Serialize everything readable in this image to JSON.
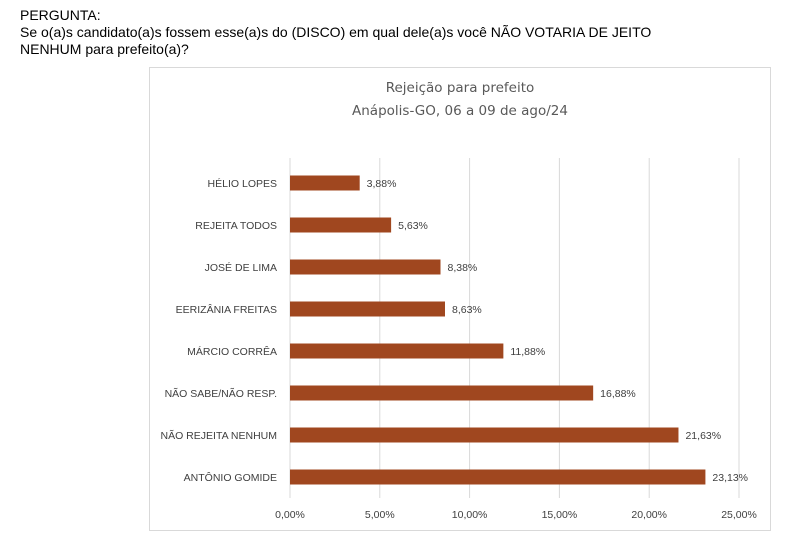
{
  "question": {
    "heading": "PERGUNTA:",
    "line1": "Se o(a)s candidato(a)s fossem esse(a)s do (DISCO) em qual dele(a)s você NÃO VOTARIA DE JEITO",
    "line2": "NENHUM para prefeito(a)?"
  },
  "chart_data": {
    "type": "bar",
    "orientation": "horizontal",
    "title": "Rejeição para prefeito",
    "subtitle": "Anápolis-GO, 06 a 09 de ago/24",
    "categories": [
      "HÉLIO LOPES",
      "REJEITA TODOS",
      "JOSÉ DE LIMA",
      "EERIZÂNIA FREITAS",
      "MÁRCIO CORRÊA",
      "NÃO SABE/NÃO RESP.",
      "NÃO REJEITA NENHUM",
      "ANTÔNIO GOMIDE"
    ],
    "values": [
      3.88,
      5.63,
      8.38,
      8.63,
      11.88,
      16.88,
      21.63,
      23.13
    ],
    "data_labels": [
      "3,88%",
      "5,63%",
      "8,38%",
      "8,63%",
      "11,88%",
      "16,88%",
      "21,63%",
      "23,13%"
    ],
    "xlim": [
      0,
      25
    ],
    "xticks": [
      0,
      5,
      10,
      15,
      20,
      25
    ],
    "xtick_labels": [
      "0,00%",
      "5,00%",
      "10,00%",
      "15,00%",
      "20,00%",
      "25,00%"
    ],
    "xlabel": "",
    "ylabel": "",
    "grid": "vertical",
    "bar_color": "#a0471f",
    "grid_color": "#d9d9d9"
  }
}
